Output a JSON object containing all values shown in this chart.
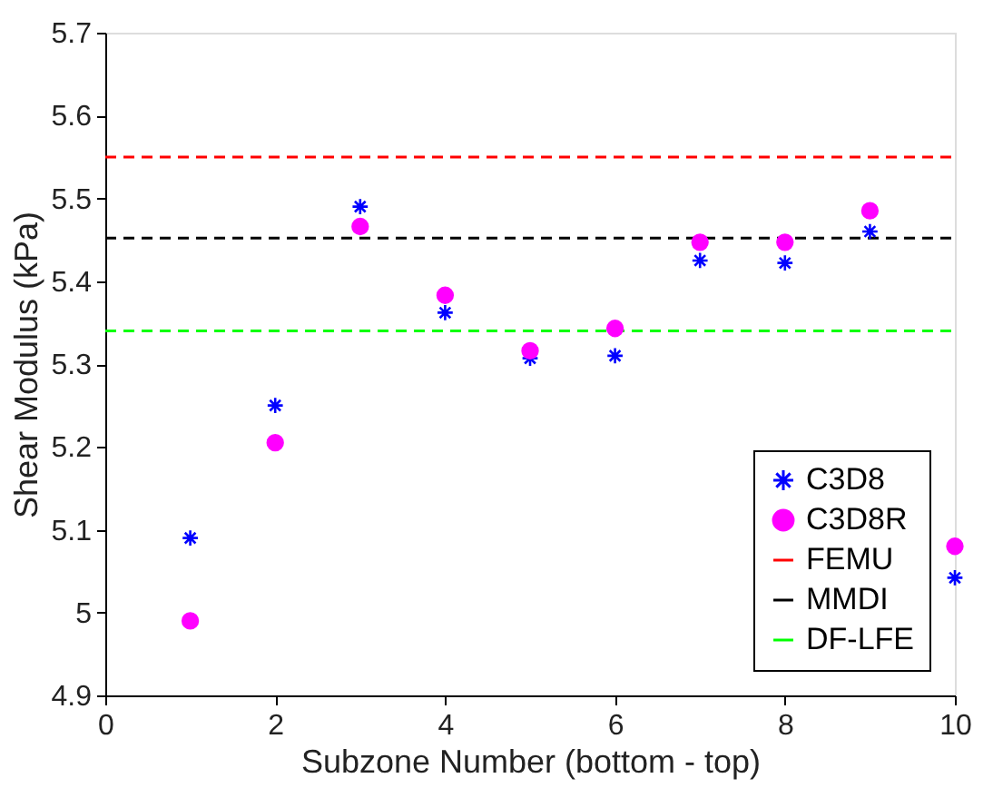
{
  "chart_data": {
    "type": "scatter",
    "xlabel": "Subzone Number (bottom - top)",
    "ylabel": "Shear Modulus (kPa)",
    "x": [
      1,
      2,
      3,
      4,
      5,
      6,
      7,
      8,
      9,
      10
    ],
    "series": [
      {
        "name": "C3D8",
        "color": "#0000ff",
        "marker": "cross",
        "values": [
          5.09,
          5.25,
          5.49,
          5.362,
          5.307,
          5.31,
          5.425,
          5.422,
          5.46,
          5.042
        ]
      },
      {
        "name": "C3D8R",
        "color": "#ff00ff",
        "marker": "circle",
        "values": [
          4.99,
          5.205,
          5.466,
          5.383,
          5.316,
          5.343,
          5.447,
          5.447,
          5.485,
          5.08
        ]
      }
    ],
    "ref_lines": [
      {
        "axis": "y",
        "value": 5.55,
        "label": "FEMU",
        "color": "#ff0000",
        "line_style": "dashed"
      },
      {
        "axis": "y",
        "value": 5.452,
        "label": "MMDI",
        "color": "#000000",
        "line_style": "dashed"
      },
      {
        "axis": "y",
        "value": 5.34,
        "label": "DF-LFE",
        "color": "#00ff00",
        "line_style": "dashed"
      }
    ],
    "xlim": [
      0,
      10
    ],
    "xticks": [
      0,
      2,
      4,
      6,
      8,
      10
    ],
    "ylim": [
      4.9,
      5.7
    ],
    "yticks": [
      4.9,
      5,
      5.1,
      5.2,
      5.3,
      5.4,
      5.5,
      5.6,
      5.7
    ],
    "grid": false,
    "legend": "bottom right"
  }
}
